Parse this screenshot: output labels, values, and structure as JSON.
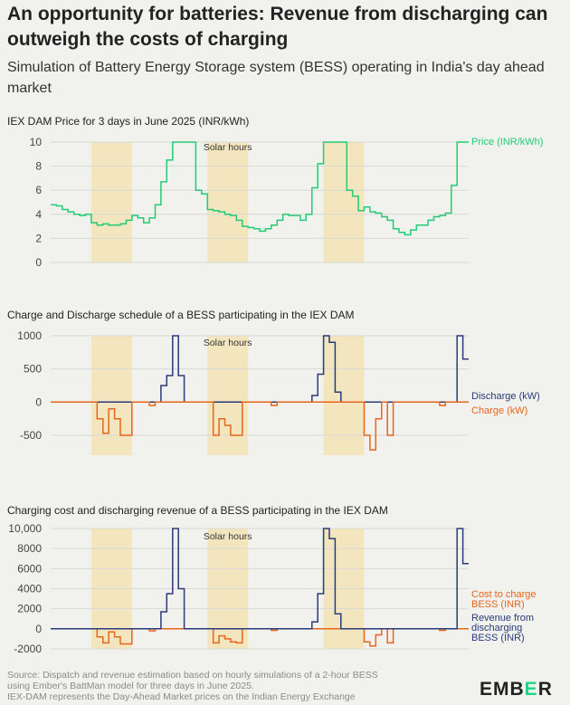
{
  "title": "An opportunity for batteries: Revenue from discharging can outweigh the costs of charging",
  "subtitle": "Simulation of Battery Energy Storage system (BESS) operating in India's day ahead market",
  "footer": {
    "line1": "Source: Dispatch and revenue estimation based on hourly simulations of a 2-hour BESS",
    "line2": "using Ember's BattMan model for three days in June 2025.",
    "line3": "IEX-DAM represents the Day-Ahead Market prices on the Indian Energy Exchange"
  },
  "logo": {
    "text_main": "EMB",
    "text_accent": "E",
    "text_end": "R"
  },
  "colors": {
    "price": "#22cc77",
    "discharge": "#2a3a7a",
    "charge": "#e8651c",
    "solar_band": "#f3e6bf",
    "grid": "#d8d8d4",
    "zero": "#555555"
  },
  "chart_data": [
    {
      "type": "line",
      "title": "IEX DAM Price for 3 days in June 2025 (INR/kWh)",
      "x_hours": 72,
      "ylim": [
        0,
        10
      ],
      "yticks": [
        0,
        2,
        4,
        6,
        8,
        10
      ],
      "ytick_labels": [
        "0",
        "2",
        "4",
        "6",
        "8",
        "10"
      ],
      "grid": true,
      "solar_label": "Solar hours",
      "solar_hours": [
        [
          7,
          14
        ],
        [
          27,
          34
        ],
        [
          47,
          54
        ]
      ],
      "series": [
        {
          "name": "Price (INR/kWh)",
          "step": true,
          "values": [
            4.8,
            4.7,
            4.4,
            4.2,
            4.0,
            3.9,
            4.0,
            3.3,
            3.1,
            3.2,
            3.1,
            3.1,
            3.2,
            3.5,
            3.9,
            3.7,
            3.3,
            3.7,
            4.8,
            6.7,
            8.5,
            10,
            10,
            10,
            10,
            6.0,
            5.7,
            4.4,
            4.3,
            4.2,
            4.0,
            3.9,
            3.5,
            3.0,
            2.9,
            2.8,
            2.6,
            2.8,
            3.1,
            3.5,
            4.0,
            3.9,
            3.9,
            3.5,
            4.0,
            6.2,
            8.2,
            10,
            10,
            10,
            10,
            6.0,
            5.5,
            4.3,
            4.6,
            4.2,
            4.1,
            3.8,
            3.5,
            2.8,
            2.5,
            2.3,
            2.7,
            3.1,
            3.1,
            3.5,
            3.8,
            3.9,
            4.1,
            6.4,
            10,
            10
          ]
        }
      ]
    },
    {
      "type": "line",
      "title": "Charge and Discharge schedule of a BESS participating in the IEX DAM",
      "x_hours": 72,
      "ylim": [
        -800,
        1000
      ],
      "yticks": [
        -500,
        0,
        500,
        1000
      ],
      "ytick_labels": [
        "-500",
        "0",
        "500",
        "1000"
      ],
      "grid": true,
      "solar_label": "Solar hours",
      "solar_hours": [
        [
          7,
          14
        ],
        [
          27,
          34
        ],
        [
          47,
          54
        ]
      ],
      "series": [
        {
          "name": "Discharge (kW)",
          "step": true,
          "values": [
            0,
            0,
            0,
            0,
            0,
            0,
            0,
            0,
            0,
            0,
            0,
            0,
            0,
            0,
            0,
            0,
            0,
            0,
            0,
            250,
            400,
            1000,
            400,
            0,
            0,
            0,
            0,
            0,
            0,
            0,
            0,
            0,
            0,
            0,
            0,
            0,
            0,
            0,
            0,
            0,
            0,
            0,
            0,
            0,
            0,
            100,
            420,
            1000,
            900,
            150,
            0,
            0,
            0,
            0,
            0,
            0,
            0,
            0,
            0,
            0,
            0,
            0,
            0,
            0,
            0,
            0,
            0,
            0,
            0,
            0,
            1000,
            650
          ]
        },
        {
          "name": "Charge (kW)",
          "step": true,
          "values": [
            0,
            0,
            0,
            0,
            0,
            0,
            0,
            0,
            -250,
            -470,
            -100,
            -250,
            -500,
            -500,
            0,
            0,
            0,
            -50,
            0,
            0,
            0,
            0,
            0,
            0,
            0,
            0,
            0,
            0,
            -500,
            -250,
            -350,
            -500,
            -500,
            0,
            0,
            0,
            0,
            0,
            -50,
            0,
            0,
            0,
            0,
            0,
            0,
            0,
            0,
            0,
            0,
            0,
            0,
            0,
            0,
            0,
            -500,
            -720,
            -250,
            0,
            -500,
            0,
            0,
            0,
            0,
            0,
            0,
            0,
            0,
            -50,
            0,
            0,
            0,
            0
          ]
        }
      ]
    },
    {
      "type": "line",
      "title": "Charging cost and discharging revenue of a BESS participating in the IEX DAM",
      "x_hours": 72,
      "ylim": [
        -2000,
        10000
      ],
      "yticks": [
        -2000,
        0,
        2000,
        4000,
        6000,
        8000,
        10000
      ],
      "ytick_labels": [
        "-2000",
        "0",
        "2000",
        "4000",
        "6000",
        "8000",
        "10,000"
      ],
      "grid": true,
      "solar_label": "Solar hours",
      "solar_hours": [
        [
          7,
          14
        ],
        [
          27,
          34
        ],
        [
          47,
          54
        ]
      ],
      "series": [
        {
          "name": "Cost to charge BESS (INR)",
          "label_lines": [
            "Cost to charge",
            "BESS (INR)"
          ],
          "step": true,
          "values": [
            0,
            0,
            0,
            0,
            0,
            0,
            0,
            0,
            -800,
            -1400,
            -300,
            -800,
            -1500,
            -1500,
            0,
            0,
            0,
            -200,
            0,
            0,
            0,
            0,
            0,
            0,
            0,
            0,
            0,
            0,
            -1400,
            -700,
            -1000,
            -1300,
            -1400,
            0,
            0,
            0,
            0,
            0,
            -150,
            0,
            0,
            0,
            0,
            0,
            0,
            0,
            0,
            0,
            0,
            0,
            0,
            0,
            0,
            0,
            -1300,
            -1700,
            -600,
            0,
            -1400,
            0,
            0,
            0,
            0,
            0,
            0,
            0,
            0,
            -150,
            0,
            0,
            0,
            0
          ]
        },
        {
          "name": "Revenue from discharging BESS (INR)",
          "label_lines": [
            "Revenue from",
            "discharging",
            "BESS (INR)"
          ],
          "step": true,
          "values": [
            0,
            0,
            0,
            0,
            0,
            0,
            0,
            0,
            0,
            0,
            0,
            0,
            0,
            0,
            0,
            0,
            0,
            0,
            0,
            1700,
            3500,
            10000,
            4000,
            0,
            0,
            0,
            0,
            0,
            0,
            0,
            0,
            0,
            0,
            0,
            0,
            0,
            0,
            0,
            0,
            0,
            0,
            0,
            0,
            0,
            0,
            700,
            3500,
            10000,
            9000,
            1500,
            0,
            0,
            0,
            0,
            0,
            0,
            0,
            0,
            0,
            0,
            0,
            0,
            0,
            0,
            0,
            0,
            0,
            0,
            0,
            0,
            10000,
            6500
          ]
        }
      ]
    }
  ]
}
